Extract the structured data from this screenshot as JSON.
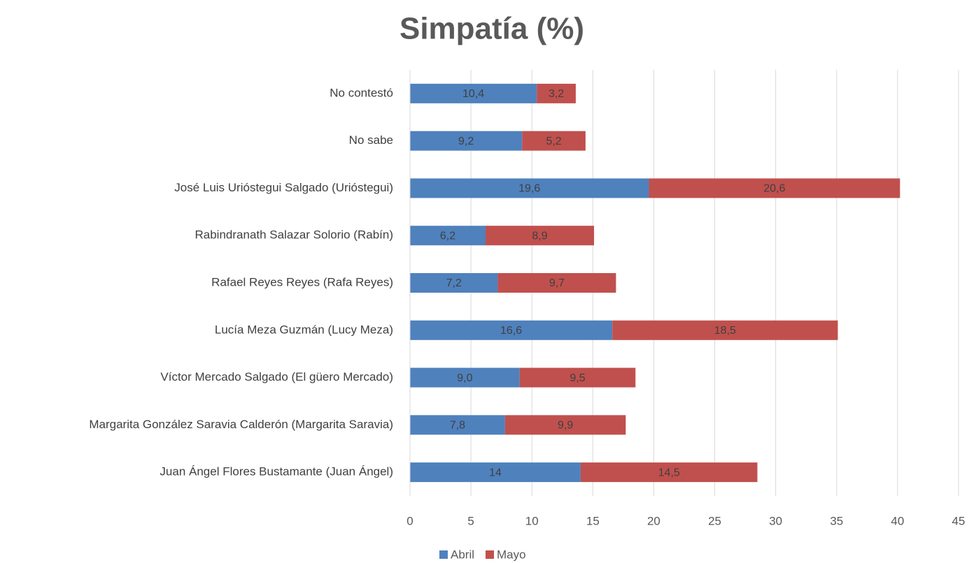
{
  "chart_data": {
    "type": "stacked_hbar",
    "title": "Simpatía (%)",
    "categories": [
      "No contestó",
      "No sabe",
      "José Luis Urióstegui Salgado (Urióstegui)",
      "Rabindranath Salazar Solorio (Rabín)",
      "Rafael Reyes Reyes (Rafa Reyes)",
      "Lucía Meza Guzmán (Lucy Meza)",
      "Víctor Mercado Salgado (El güero Mercado)",
      "Margarita González Saravia Calderón (Margarita Saravia)",
      "Juan Ángel Flores Bustamante (Juan Ángel)"
    ],
    "series": [
      {
        "name": "Abril",
        "color": "#4f81bd",
        "values": [
          10.4,
          9.2,
          19.6,
          6.2,
          7.2,
          16.6,
          9.0,
          7.8,
          14
        ],
        "value_labels": [
          "10,4",
          "9,2",
          "19,6",
          "6,2",
          "7,2",
          "16,6",
          "9,0",
          "7,8",
          "14"
        ]
      },
      {
        "name": "Mayo",
        "color": "#c0504d",
        "values": [
          3.2,
          5.2,
          20.6,
          8.9,
          9.7,
          18.5,
          9.5,
          9.9,
          14.5
        ],
        "value_labels": [
          "3,2",
          "5,2",
          "20,6",
          "8,9",
          "9,7",
          "18,5",
          "9,5",
          "9,9",
          "14,5"
        ]
      }
    ],
    "xlim": [
      0,
      45
    ],
    "xticks": [
      0,
      5,
      10,
      15,
      20,
      25,
      30,
      35,
      40,
      45
    ],
    "grid": true,
    "legend": "bottom"
  }
}
